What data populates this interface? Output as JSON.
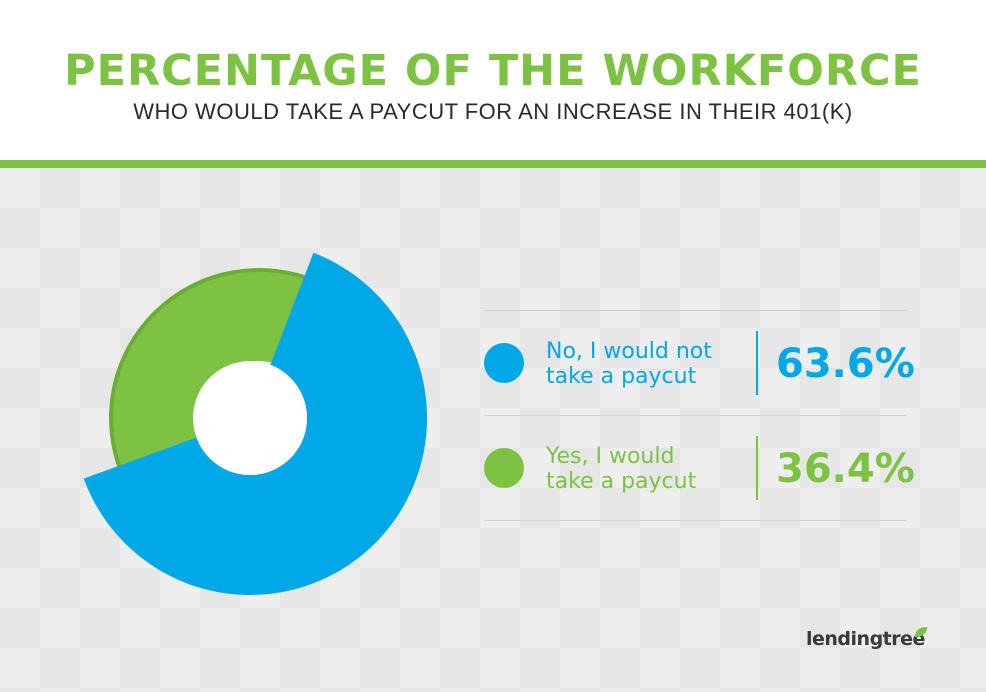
{
  "header": {
    "title": "PERCENTAGE OF THE WORKFORCE",
    "subtitle": "WHO WOULD TAKE A PAYCUT FOR AN INCREASE IN THEIR 401(K)"
  },
  "chart_data": {
    "type": "pie",
    "variant": "donut",
    "title": "PERCENTAGE OF THE WORKFORCE",
    "subtitle": "WHO WOULD TAKE A PAYCUT FOR AN INCREASE IN THEIR 401(K)",
    "unit": "%",
    "slices": [
      {
        "label": "No, I would not take a paycut",
        "value": 63.6,
        "display": "63.6%",
        "color": "#00a8e8"
      },
      {
        "label": "Yes, I would take a paycut",
        "value": 36.4,
        "display": "36.4%",
        "color": "#7dc243"
      }
    ],
    "legend_position": "right"
  },
  "legend": [
    {
      "line1": "No, I would not",
      "line2": "take a paycut",
      "value": "63.6%",
      "color": "#00a8e8"
    },
    {
      "line1": "Yes, I would",
      "line2": "take a paycut",
      "value": "36.4%",
      "color": "#7dc243"
    }
  ],
  "logo": {
    "text": "lendingtree"
  },
  "colors": {
    "accent_green": "#7dc243",
    "accent_blue": "#00a8e8",
    "green_shadow": "#6aad35"
  }
}
